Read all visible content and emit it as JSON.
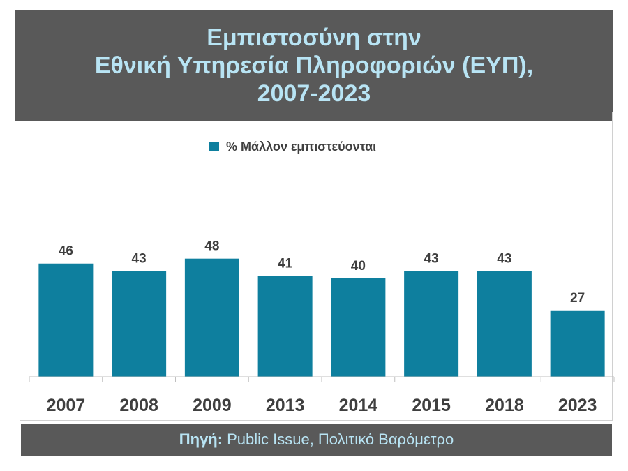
{
  "title": {
    "lines": [
      "Εμπιστοσύνη στην",
      "Εθνική Υπηρεσία Πληροφοριών (ΕΥΠ),",
      "2007-2023"
    ]
  },
  "source": {
    "label": "Πηγή:",
    "text": "Public Issue, Πολιτικό Βαρόμετρο"
  },
  "colors": {
    "bar": "#0e7f9e",
    "title_bg": "#595959",
    "title_text": "#b8e4f4",
    "axis_text": "#3f3f3f"
  },
  "chart_data": {
    "type": "bar",
    "categories": [
      "2007",
      "2008",
      "2009",
      "2013",
      "2014",
      "2015",
      "2018",
      "2023"
    ],
    "series": [
      {
        "name": "% Μάλλον εμπιστεύονται",
        "values": [
          46,
          43,
          48,
          41,
          40,
          43,
          43,
          27
        ]
      }
    ],
    "legend": "top-center",
    "ylim": [
      0,
      55
    ],
    "grid": false,
    "data_labels": true
  }
}
